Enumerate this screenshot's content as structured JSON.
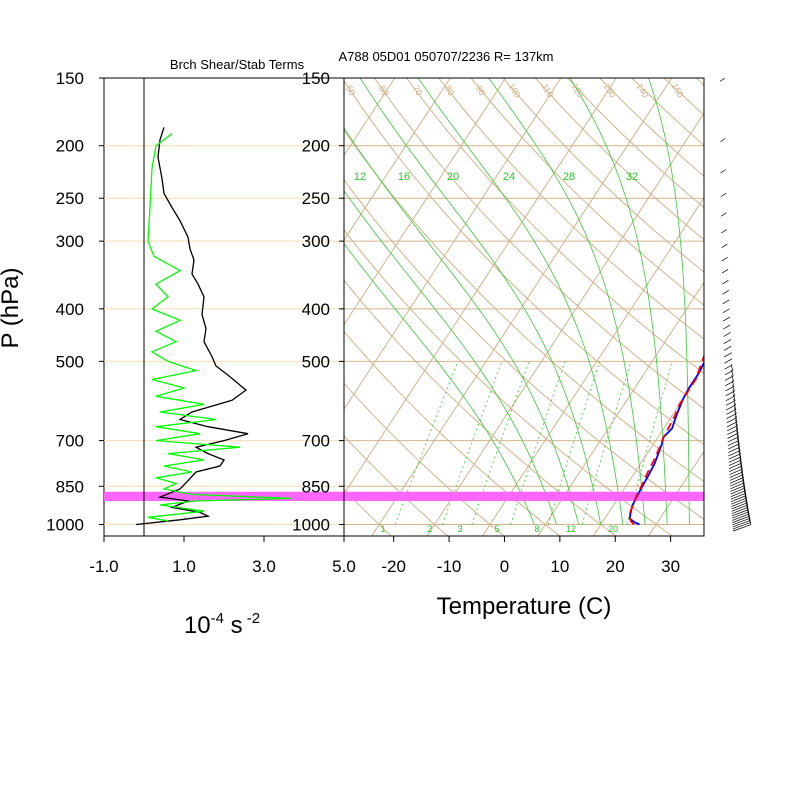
{
  "chart_data": [
    {
      "type": "line",
      "title": "Brch Shear/Stab Terms",
      "xlabel": "10^-4 s^-2",
      "xlabel_base": "10",
      "xlabel_exp1": "-4",
      "xlabel_unit": "s",
      "xlabel_exp2": "-2",
      "ylabel": "P (hPa)",
      "y_log_scale": true,
      "xlim": [
        -1.0,
        5.0
      ],
      "ylim": [
        1050,
        150
      ],
      "x_tick_labels": [
        "-1.0",
        "1.0",
        "3.0",
        "5.0"
      ],
      "x_tick_values": [
        -1.0,
        1.0,
        3.0,
        5.0
      ],
      "y_tick_values": [
        150,
        200,
        250,
        300,
        400,
        500,
        700,
        850,
        1000
      ],
      "y_tick_labels": [
        "150",
        "200",
        "250",
        "300",
        "400",
        "500",
        "700",
        "850",
        "1000"
      ],
      "highlight_band_hpa": [
        870,
        905
      ],
      "highlight_color": "#ff66ff",
      "series": [
        {
          "color": "#000000",
          "points": [
            [
              0.5,
              185
            ],
            [
              0.4,
              195
            ],
            [
              0.35,
              210
            ],
            [
              0.45,
              230
            ],
            [
              0.5,
              245
            ],
            [
              0.7,
              260
            ],
            [
              0.9,
              275
            ],
            [
              1.1,
              295
            ],
            [
              1.15,
              310
            ],
            [
              1.25,
              325
            ],
            [
              1.2,
              345
            ],
            [
              1.35,
              360
            ],
            [
              1.5,
              380
            ],
            [
              1.45,
              410
            ],
            [
              1.55,
              435
            ],
            [
              1.5,
              460
            ],
            [
              1.7,
              490
            ],
            [
              1.8,
              510
            ],
            [
              2.1,
              530
            ],
            [
              2.55,
              565
            ],
            [
              2.2,
              590
            ],
            [
              1.2,
              620
            ],
            [
              0.9,
              640
            ],
            [
              1.6,
              660
            ],
            [
              2.6,
              680
            ],
            [
              2.0,
              700
            ],
            [
              1.3,
              720
            ],
            [
              1.6,
              740
            ],
            [
              2.0,
              760
            ],
            [
              1.9,
              780
            ],
            [
              1.3,
              800
            ],
            [
              1.1,
              830
            ],
            [
              0.9,
              860
            ],
            [
              0.4,
              890
            ],
            [
              1.1,
              905
            ],
            [
              0.7,
              930
            ],
            [
              1.4,
              950
            ],
            [
              1.6,
              965
            ],
            [
              0.9,
              980
            ],
            [
              -0.2,
              1000
            ]
          ]
        },
        {
          "color": "#00ff00",
          "points": [
            [
              0.7,
              190
            ],
            [
              0.3,
              200
            ],
            [
              0.2,
              220
            ],
            [
              0.15,
              260
            ],
            [
              0.1,
              300
            ],
            [
              0.25,
              320
            ],
            [
              0.9,
              340
            ],
            [
              0.3,
              360
            ],
            [
              0.6,
              380
            ],
            [
              0.2,
              400
            ],
            [
              0.9,
              420
            ],
            [
              0.3,
              440
            ],
            [
              0.8,
              460
            ],
            [
              0.2,
              480
            ],
            [
              0.6,
              500
            ],
            [
              1.3,
              520
            ],
            [
              0.2,
              540
            ],
            [
              1.0,
              560
            ],
            [
              0.3,
              580
            ],
            [
              1.5,
              600
            ],
            [
              0.4,
              620
            ],
            [
              1.8,
              640
            ],
            [
              0.3,
              660
            ],
            [
              1.4,
              680
            ],
            [
              0.3,
              700
            ],
            [
              2.4,
              720
            ],
            [
              0.6,
              740
            ],
            [
              1.5,
              760
            ],
            [
              0.5,
              780
            ],
            [
              1.2,
              800
            ],
            [
              0.3,
              820
            ],
            [
              0.8,
              840
            ],
            [
              0.5,
              860
            ],
            [
              1.2,
              880
            ],
            [
              3.7,
              895
            ],
            [
              1.3,
              905
            ],
            [
              0.4,
              920
            ],
            [
              1.5,
              945
            ],
            [
              0.1,
              970
            ],
            [
              0.6,
              985
            ]
          ]
        }
      ]
    },
    {
      "type": "line",
      "title": "A788 05D01 050707/2236 R= 137km",
      "xlabel": "Temperature (C)",
      "ylabel": "P (hPa)",
      "y_log_scale": true,
      "xlim": [
        -25,
        40
      ],
      "ylim": [
        1050,
        150
      ],
      "x_tick_values": [
        -20,
        -10,
        0,
        10,
        20,
        30
      ],
      "x_tick_labels": [
        "-20",
        "-10",
        "0",
        "10",
        "20",
        "30"
      ],
      "y_tick_values": [
        150,
        200,
        250,
        300,
        400,
        500,
        700,
        850,
        1000
      ],
      "y_tick_labels": [
        "150",
        "200",
        "250",
        "300",
        "400",
        "500",
        "700",
        "850",
        "1000"
      ],
      "isotherm_tick_labels": [
        "-30",
        "-20",
        "-10",
        "0",
        "10",
        "20",
        "30",
        "40",
        "50",
        "60",
        "70",
        "80",
        "90"
      ],
      "dry_adiabat_labels": [
        "50",
        "60",
        "70",
        "80",
        "90",
        "100",
        "110",
        "120",
        "130",
        "140",
        "150"
      ],
      "moist_adiabat_labels": [
        "12",
        "16",
        "20",
        "24",
        "28",
        "32"
      ],
      "mixing_ratio_labels": [
        "1",
        "2",
        "3",
        "5",
        "8",
        "12",
        "20"
      ],
      "highlight_band_hpa": [
        870,
        905
      ],
      "highlight_color": "#ff66ff",
      "series": [
        {
          "color": "#0000ff",
          "points": [
            [
              27,
              1000
            ],
            [
              26,
              992
            ],
            [
              24.5,
              975
            ],
            [
              24,
              950
            ],
            [
              23.5,
              925
            ],
            [
              23.2,
              890
            ],
            [
              23,
              850
            ],
            [
              22.8,
              810
            ],
            [
              22.5,
              770
            ],
            [
              22,
              740
            ],
            [
              21.5,
              710
            ],
            [
              21,
              690
            ],
            [
              21.5,
              665
            ],
            [
              21,
              640
            ],
            [
              20.5,
              615
            ],
            [
              20,
              585
            ],
            [
              19.8,
              560
            ],
            [
              19.8,
              530
            ],
            [
              19.5,
              500
            ],
            [
              19,
              470
            ],
            [
              18,
              440
            ],
            [
              17,
              410
            ],
            [
              16,
              380
            ],
            [
              15,
              350
            ],
            [
              14,
              320
            ],
            [
              13,
              300
            ],
            [
              12,
              285
            ],
            [
              10,
              265
            ],
            [
              8,
              245
            ],
            [
              6,
              225
            ],
            [
              4,
              205
            ],
            [
              2,
              190
            ],
            [
              0,
              180
            ]
          ]
        },
        {
          "color": "#ff0000",
          "dashed": true,
          "points": [
            [
              26,
              1000
            ],
            [
              25,
              985
            ],
            [
              24,
              960
            ],
            [
              23.5,
              920
            ],
            [
              23,
              880
            ],
            [
              22.8,
              850
            ],
            [
              22.3,
              800
            ],
            [
              22,
              760
            ],
            [
              21.5,
              720
            ],
            [
              21,
              690
            ],
            [
              20.8,
              660
            ],
            [
              20.5,
              630
            ],
            [
              20,
              600
            ],
            [
              20,
              570
            ],
            [
              20,
              540
            ],
            [
              19,
              500
            ],
            [
              18,
              460
            ],
            [
              16.5,
              420
            ],
            [
              15,
              380
            ],
            [
              13.5,
              340
            ],
            [
              12,
              310
            ],
            [
              10.5,
              285
            ],
            [
              8.5,
              262
            ],
            [
              6,
              240
            ],
            [
              4,
              225
            ],
            [
              2,
              215
            ],
            [
              0,
              208
            ],
            [
              -2,
              203
            ]
          ]
        }
      ]
    }
  ],
  "wind_barbs": {
    "p_top": 150,
    "p_bottom": 1000,
    "count": 70
  }
}
